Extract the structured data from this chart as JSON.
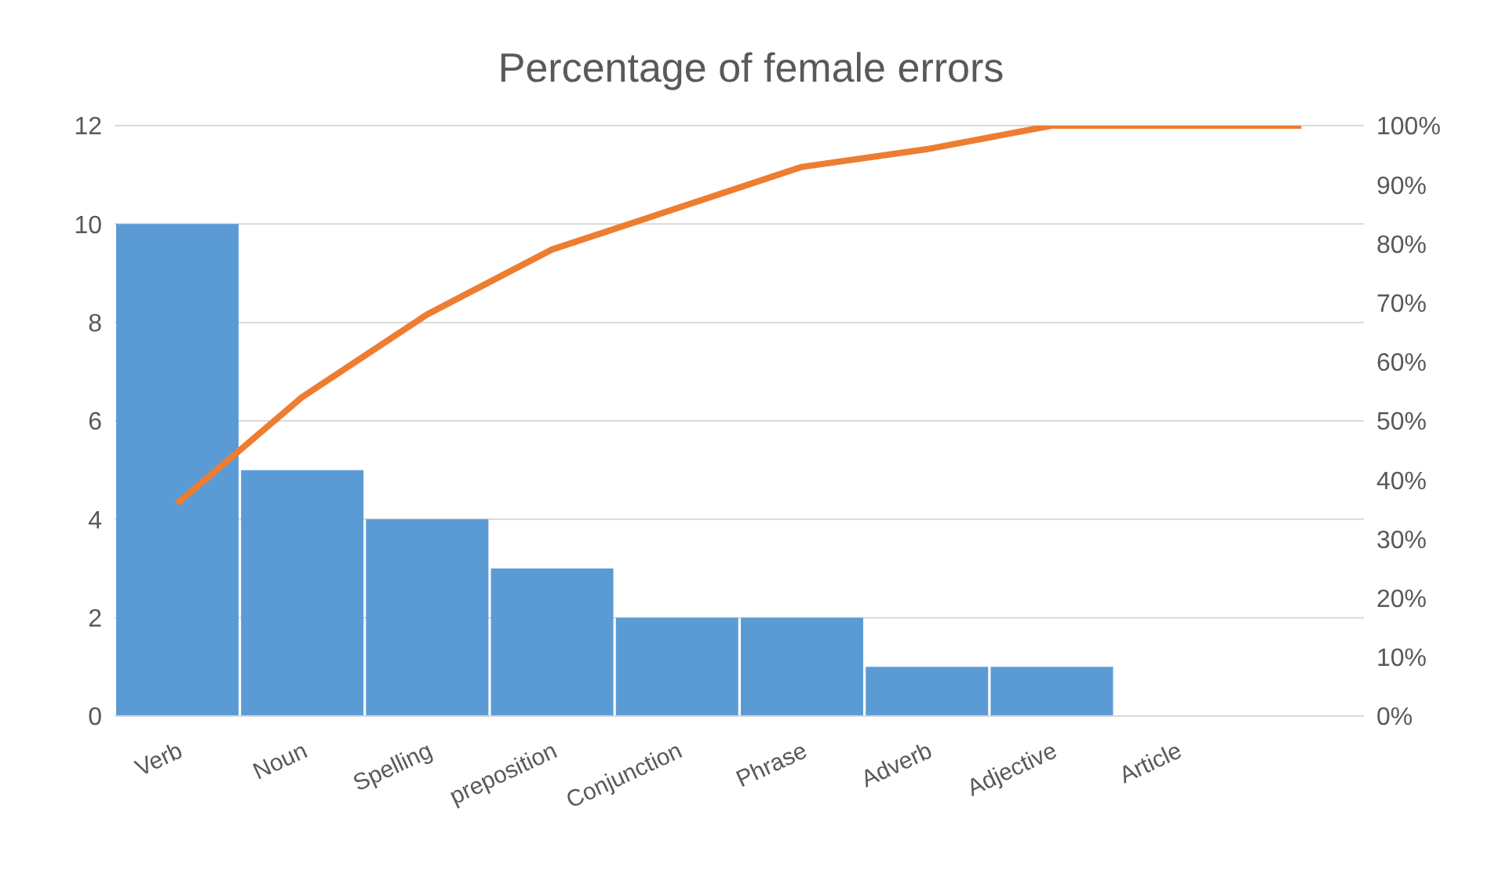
{
  "chart_data": {
    "type": "bar",
    "title": "Percentage of female errors",
    "categories": [
      "Verb",
      "Noun",
      "Spelling",
      "preposition",
      "Conjunction",
      "Phrase",
      "Adverb",
      "Adjective",
      "Article",
      null
    ],
    "series": [
      {
        "color": "#5b9bd5",
        "values": [
          10,
          5,
          4,
          3,
          2,
          2,
          1,
          1,
          0,
          0
        ]
      },
      {
        "type": "line",
        "axis": "y2",
        "color": "#ed7d31",
        "marker": "none",
        "values": [
          36,
          54,
          68,
          79,
          86,
          93,
          96,
          100,
          100,
          100
        ]
      }
    ],
    "ylim": [
      0,
      12
    ],
    "yticks": [
      0,
      2,
      4,
      6,
      8,
      10,
      12
    ],
    "y2lim": [
      0,
      100
    ],
    "y2ticks": [
      {
        "value": 0,
        "label": "0%"
      },
      {
        "value": 10,
        "label": "10%"
      },
      {
        "value": 20,
        "label": "20%"
      },
      {
        "value": 30,
        "label": "30%"
      },
      {
        "value": 40,
        "label": "40%"
      },
      {
        "value": 50,
        "label": "50%"
      },
      {
        "value": 60,
        "label": "60%"
      },
      {
        "value": 70,
        "label": "70%"
      },
      {
        "value": 80,
        "label": "80%"
      },
      {
        "value": 90,
        "label": "90%"
      },
      {
        "value": 100,
        "label": "100%"
      }
    ],
    "grid": "y",
    "legend": false
  }
}
